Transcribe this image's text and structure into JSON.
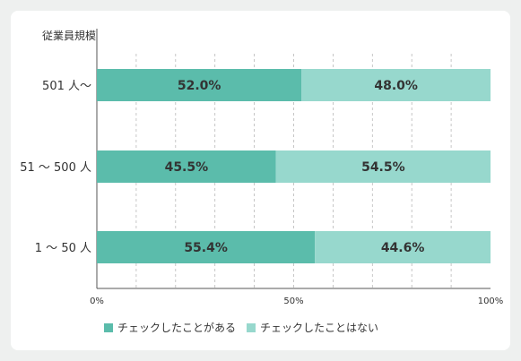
{
  "chart_data": {
    "type": "bar",
    "orientation": "horizontal",
    "stacked": true,
    "ylabel": "従業員規模",
    "categories": [
      "501 人〜",
      "51 〜 500 人",
      "1 〜 50 人"
    ],
    "series": [
      {
        "name": "チェックしたことがある",
        "values": [
          52.0,
          45.5,
          55.4
        ],
        "labels": [
          "52.0%",
          "45.5%",
          "55.4%"
        ],
        "color": "#5bbcab"
      },
      {
        "name": "チェックしたことはない",
        "values": [
          48.0,
          54.5,
          44.6
        ],
        "labels": [
          "48.0%",
          "54.5%",
          "44.6%"
        ],
        "color": "#97d8cd"
      }
    ],
    "xlim": [
      0,
      100
    ],
    "x_ticks": [
      "0%",
      "50%",
      "100%"
    ],
    "grid_color": "#b8b8b8",
    "grid": true,
    "legend_position": "bottom-left"
  }
}
